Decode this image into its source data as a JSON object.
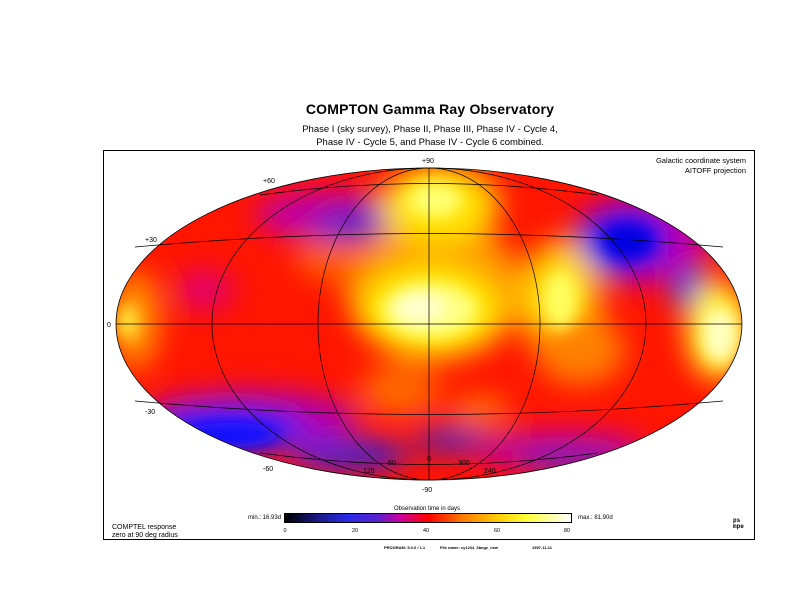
{
  "header": {
    "title": "COMPTON  Gamma Ray Observatory",
    "subtitle_line1": "Phase I (sky  survey), Phase II, Phase III, Phase IV - Cycle 4,",
    "subtitle_line2": "Phase IV - Cycle 5, and Phase IV - Cycle 6 combined."
  },
  "map": {
    "coordinate_system_line1": "Galactic coordinate system",
    "coordinate_system_line2": "AITOFF projection",
    "latitude_labels": {
      "p90": "+90",
      "p60": "+60",
      "p30": "+30",
      "zero": "0",
      "m30": "-30",
      "m60": "-60",
      "m90": "-90"
    },
    "longitude_labels": {
      "l120": "120",
      "l60": "60",
      "l0": "0",
      "l300": "300",
      "l240": "240"
    },
    "color_scale": [
      "#000000",
      "#2a2ae8",
      "#c800a0",
      "#ff0000",
      "#ff7a00",
      "#ffd000",
      "#ffff40",
      "#ffffff"
    ]
  },
  "colorbar": {
    "label": "Observation time in days",
    "min_text": "min.: 16.93d",
    "max_text": "max.: 81.90d",
    "ticks": [
      "0",
      "20",
      "40",
      "60",
      "80"
    ]
  },
  "footnote": {
    "line1": "COMPTEL response",
    "line2": "zero at 90 deg radius"
  },
  "footer": {
    "left": "PROGRAM: 5.0.0 / 1.1",
    "middle": "File name: cy1234_6bege_new",
    "right": "1997-11-11"
  },
  "logo": {
    "line1": "ps",
    "line2": "mpe"
  }
}
